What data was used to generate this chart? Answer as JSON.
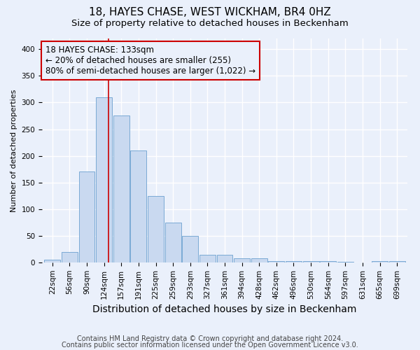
{
  "title": "18, HAYES CHASE, WEST WICKHAM, BR4 0HZ",
  "subtitle": "Size of property relative to detached houses in Beckenham",
  "xlabel": "Distribution of detached houses by size in Beckenham",
  "ylabel": "Number of detached properties",
  "footnote1": "Contains HM Land Registry data © Crown copyright and database right 2024.",
  "footnote2": "Contains public sector information licensed under the Open Government Licence v3.0.",
  "bar_labels": [
    "22sqm",
    "56sqm",
    "90sqm",
    "124sqm",
    "157sqm",
    "191sqm",
    "225sqm",
    "259sqm",
    "293sqm",
    "327sqm",
    "361sqm",
    "394sqm",
    "428sqm",
    "462sqm",
    "496sqm",
    "530sqm",
    "564sqm",
    "597sqm",
    "631sqm",
    "665sqm",
    "699sqm"
  ],
  "bar_values": [
    5,
    20,
    170,
    310,
    275,
    210,
    125,
    75,
    50,
    15,
    15,
    8,
    8,
    3,
    3,
    2,
    2,
    1,
    0,
    2,
    2
  ],
  "bar_color": "#c9d9f0",
  "bar_edgecolor": "#7baad4",
  "annotation_text_line1": "18 HAYES CHASE: 133sqm",
  "annotation_text_line2": "← 20% of detached houses are smaller (255)",
  "annotation_text_line3": "80% of semi-detached houses are larger (1,022) →",
  "annotation_box_color": "#cc0000",
  "vline_color": "#cc0000",
  "vline_x_index": 3.27,
  "ylim": [
    0,
    420
  ],
  "yticks": [
    0,
    50,
    100,
    150,
    200,
    250,
    300,
    350,
    400
  ],
  "background_color": "#eaf0fb",
  "grid_color": "#ffffff",
  "title_fontsize": 11,
  "subtitle_fontsize": 9.5,
  "xlabel_fontsize": 10,
  "ylabel_fontsize": 8,
  "tick_fontsize": 7.5,
  "annotation_fontsize": 8.5,
  "footnote_fontsize": 7
}
